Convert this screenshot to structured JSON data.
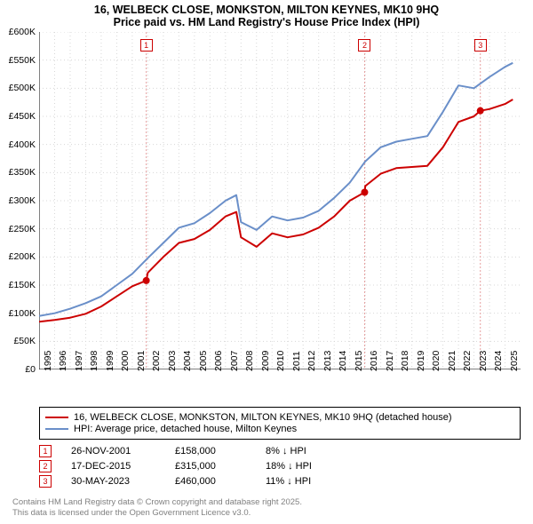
{
  "title": {
    "line1": "16, WELBECK CLOSE, MONKSTON, MILTON KEYNES, MK10 9HQ",
    "line2": "Price paid vs. HM Land Registry's House Price Index (HPI)"
  },
  "chart": {
    "type": "line",
    "background_color": "#ffffff",
    "grid_color": "#d8d8d8",
    "grid_dash": "1 3",
    "xlim": [
      1995,
      2026
    ],
    "ylim": [
      0,
      600000
    ],
    "ytick_step": 50000,
    "y_ticks": [
      "£0",
      "£50K",
      "£100K",
      "£150K",
      "£200K",
      "£250K",
      "£300K",
      "£350K",
      "£400K",
      "£450K",
      "£500K",
      "£550K",
      "£600K"
    ],
    "x_ticks": [
      "1995",
      "1996",
      "1997",
      "1998",
      "1999",
      "2000",
      "2001",
      "2002",
      "2003",
      "2004",
      "2005",
      "2006",
      "2007",
      "2008",
      "2009",
      "2010",
      "2011",
      "2012",
      "2013",
      "2014",
      "2015",
      "2016",
      "2017",
      "2018",
      "2019",
      "2020",
      "2021",
      "2022",
      "2023",
      "2024",
      "2025"
    ],
    "series": [
      {
        "name": "price_paid",
        "label": "16, WELBECK CLOSE, MONKSTON, MILTON KEYNES, MK10 9HQ (detached house)",
        "color": "#cc0000",
        "line_width": 2,
        "x": [
          1995,
          1996,
          1997,
          1998,
          1999,
          2000,
          2001,
          2001.9,
          2002,
          2003,
          2004,
          2005,
          2006,
          2007,
          2007.7,
          2008,
          2009,
          2010,
          2011,
          2012,
          2013,
          2014,
          2015,
          2015.96,
          2016,
          2017,
          2018,
          2019,
          2020,
          2021,
          2022,
          2023,
          2023.41,
          2024,
          2025,
          2025.5
        ],
        "y": [
          85000,
          88000,
          92000,
          99000,
          112000,
          130000,
          148000,
          158000,
          172000,
          200000,
          225000,
          232000,
          248000,
          272000,
          280000,
          235000,
          218000,
          242000,
          235000,
          240000,
          252000,
          272000,
          300000,
          315000,
          326000,
          348000,
          358000,
          360000,
          362000,
          395000,
          440000,
          450000,
          460000,
          463000,
          472000,
          480000
        ]
      },
      {
        "name": "hpi",
        "label": "HPI: Average price, detached house, Milton Keynes",
        "color": "#6a8fc9",
        "line_width": 2,
        "x": [
          1995,
          1996,
          1997,
          1998,
          1999,
          2000,
          2001,
          2002,
          2003,
          2004,
          2005,
          2006,
          2007,
          2007.7,
          2008,
          2009,
          2010,
          2011,
          2012,
          2013,
          2014,
          2015,
          2016,
          2017,
          2018,
          2019,
          2020,
          2021,
          2022,
          2023,
          2024,
          2025,
          2025.5
        ],
        "y": [
          95000,
          100000,
          108000,
          118000,
          130000,
          150000,
          170000,
          198000,
          225000,
          252000,
          260000,
          278000,
          300000,
          310000,
          262000,
          248000,
          272000,
          265000,
          270000,
          282000,
          305000,
          332000,
          370000,
          395000,
          405000,
          410000,
          415000,
          458000,
          505000,
          500000,
          520000,
          538000,
          545000
        ]
      }
    ],
    "event_markers": [
      {
        "n": "1",
        "x": 2001.9,
        "y": 158000,
        "line_color": "#e6a0a0"
      },
      {
        "n": "2",
        "x": 2015.96,
        "y": 315000,
        "line_color": "#e6a0a0"
      },
      {
        "n": "3",
        "x": 2023.41,
        "y": 460000,
        "line_color": "#e6a0a0"
      }
    ],
    "marker_box_top_offset": 22,
    "sale_dot_color": "#cc0000",
    "sale_dot_radius": 4
  },
  "legend": {
    "items": [
      {
        "color": "#cc0000",
        "label": "16, WELBECK CLOSE, MONKSTON, MILTON KEYNES, MK10 9HQ (detached house)"
      },
      {
        "color": "#6a8fc9",
        "label": "HPI: Average price, detached house, Milton Keynes"
      }
    ]
  },
  "sales": [
    {
      "n": "1",
      "date": "26-NOV-2001",
      "price": "£158,000",
      "diff": "8% ↓ HPI"
    },
    {
      "n": "2",
      "date": "17-DEC-2015",
      "price": "£315,000",
      "diff": "18% ↓ HPI"
    },
    {
      "n": "3",
      "date": "30-MAY-2023",
      "price": "£460,000",
      "diff": "11% ↓ HPI"
    }
  ],
  "footer": {
    "line1": "Contains HM Land Registry data © Crown copyright and database right 2025.",
    "line2": "This data is licensed under the Open Government Licence v3.0."
  }
}
